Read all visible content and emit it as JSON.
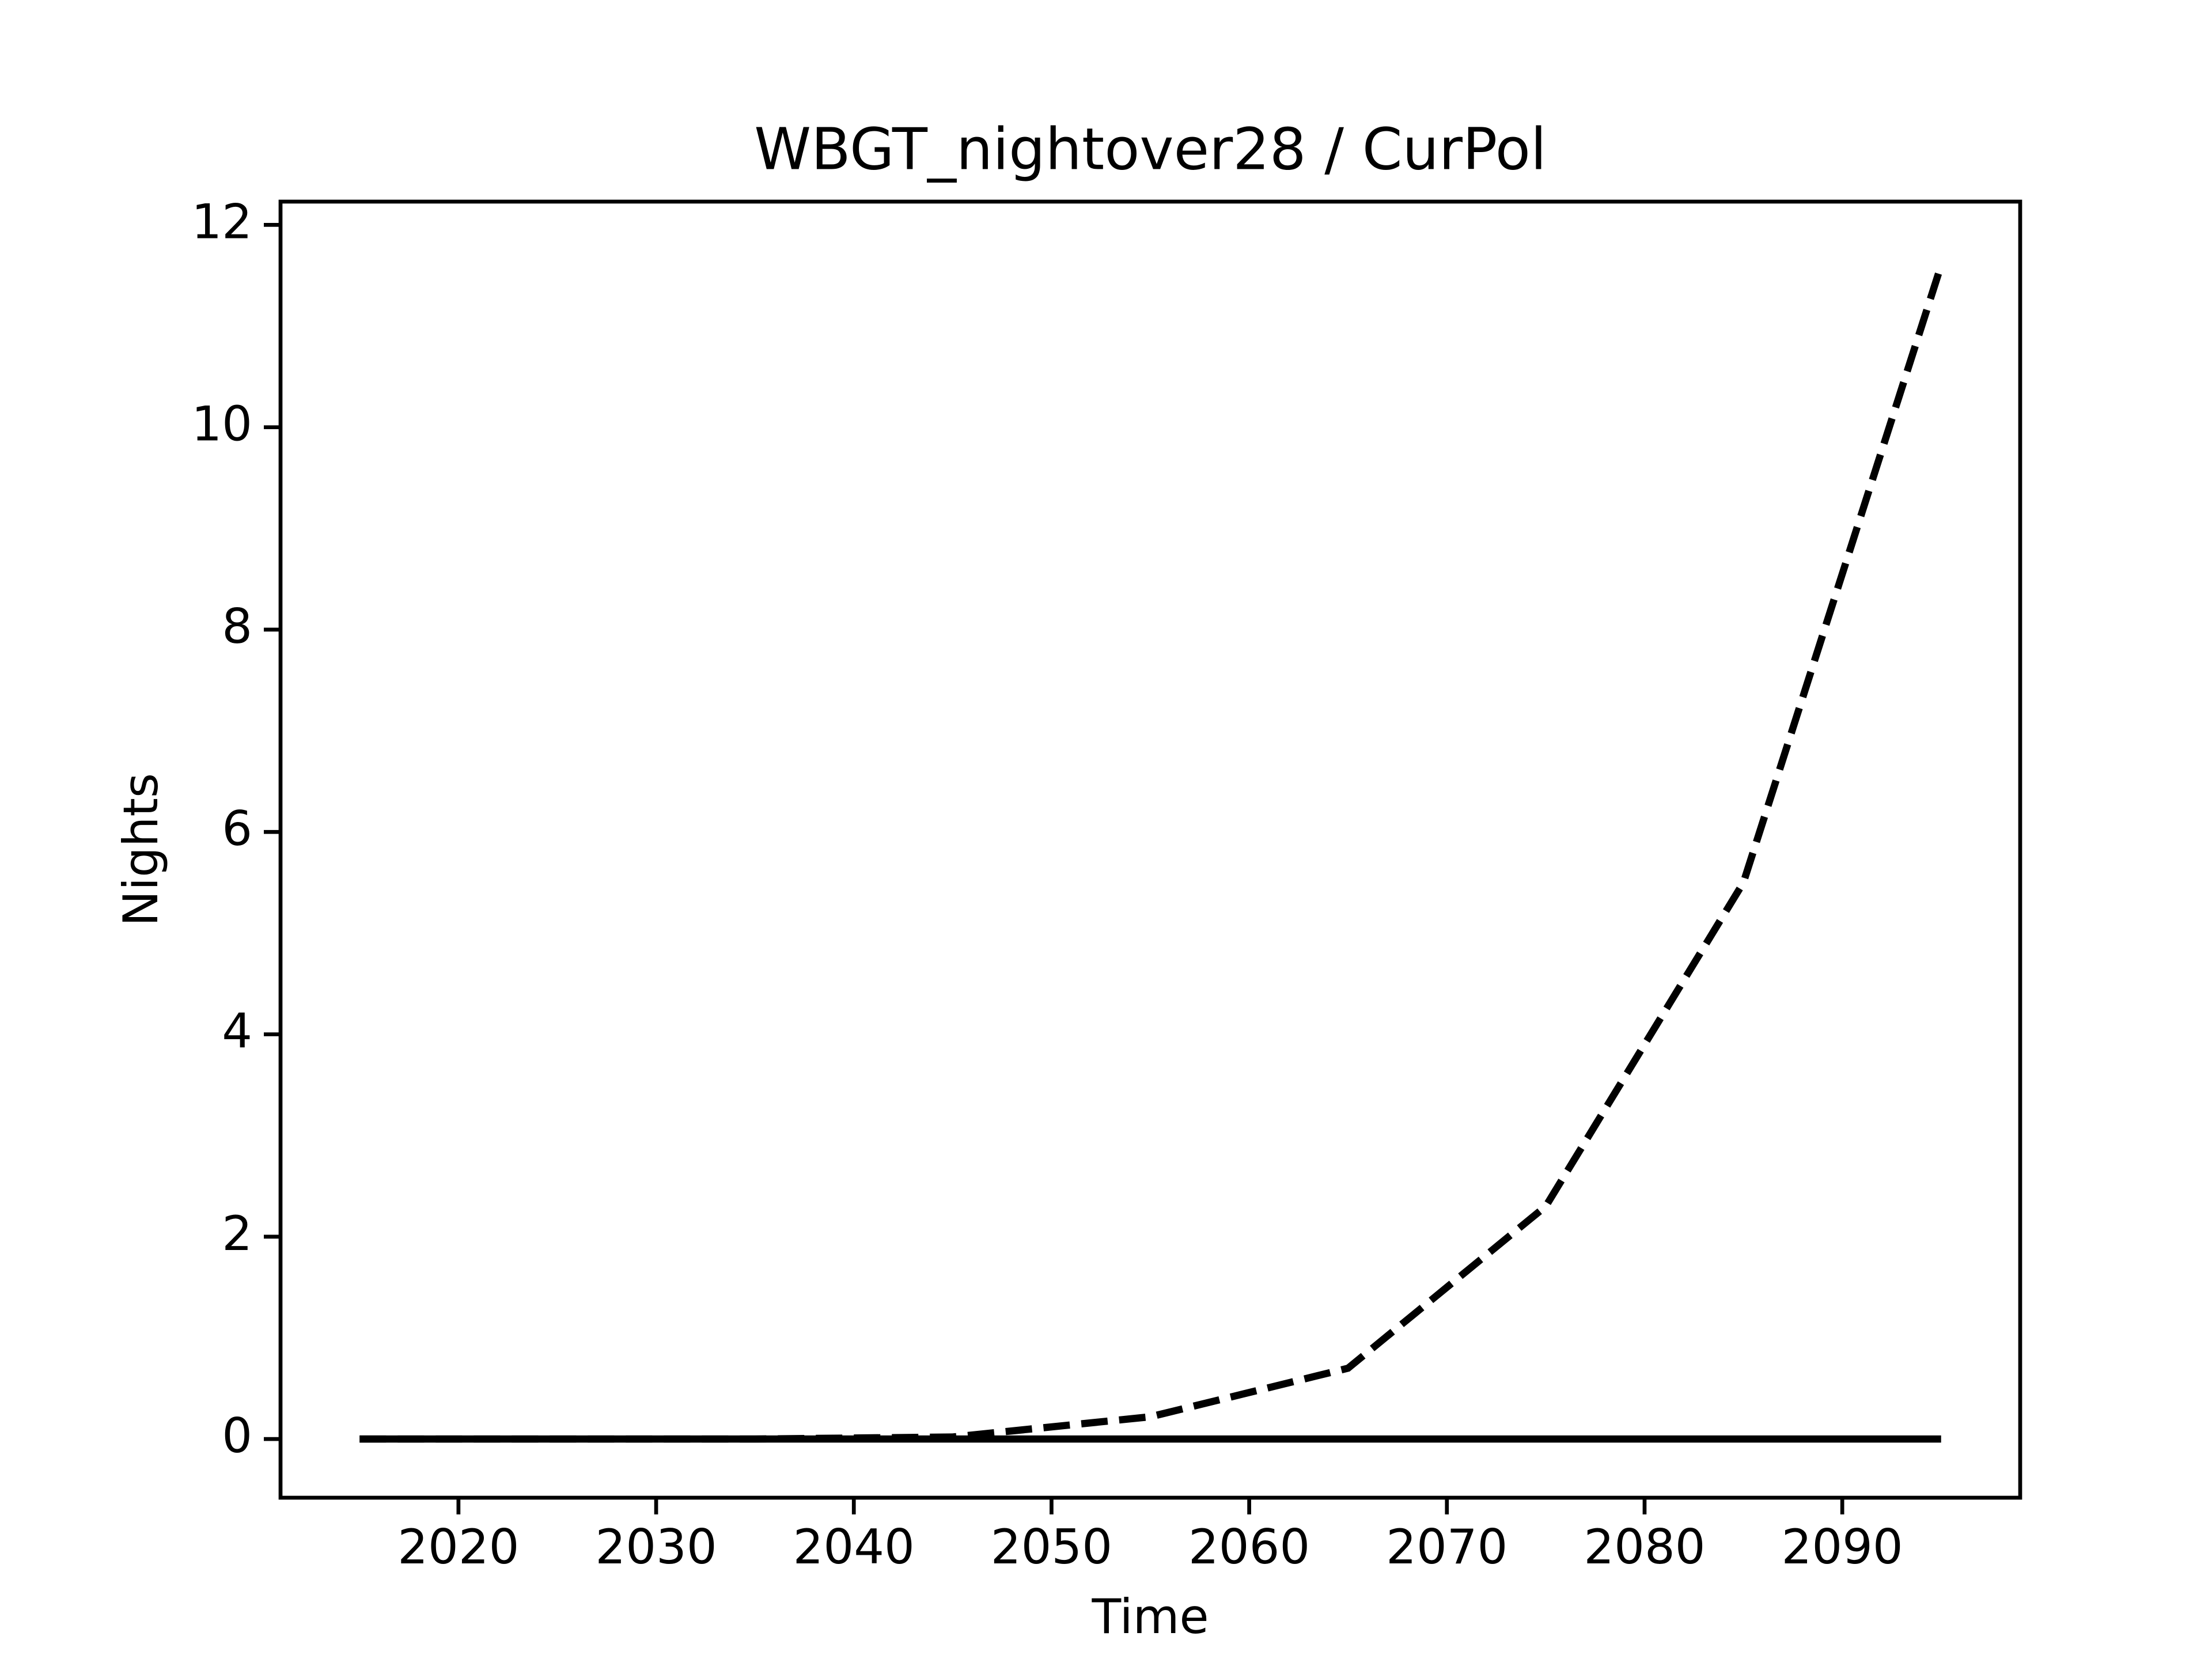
{
  "chart_data": {
    "type": "line",
    "title": "WBGT_nightover28 / CurPol",
    "x_label": "Time",
    "y_label": "Nights",
    "x": [
      2015,
      2025,
      2035,
      2045,
      2055,
      2065,
      2075,
      2085,
      2095
    ],
    "series": [
      {
        "color": "#000000",
        "linestyle": "dashed",
        "values": [
          0,
          0,
          0,
          0.02,
          0.22,
          0.7,
          2.3,
          5.5,
          11.6
        ]
      },
      {
        "color": "#000000",
        "linestyle": "solid",
        "values": [
          0,
          0,
          0,
          0,
          0,
          0,
          0,
          0,
          0
        ]
      }
    ],
    "xlim": [
      2011,
      2099
    ],
    "ylim": [
      -0.58,
      12.23
    ],
    "xticks": [
      2020,
      2030,
      2040,
      2050,
      2060,
      2070,
      2080,
      2090
    ],
    "yticks": [
      0,
      2,
      4,
      6,
      8,
      10,
      12
    ],
    "grid": false
  }
}
